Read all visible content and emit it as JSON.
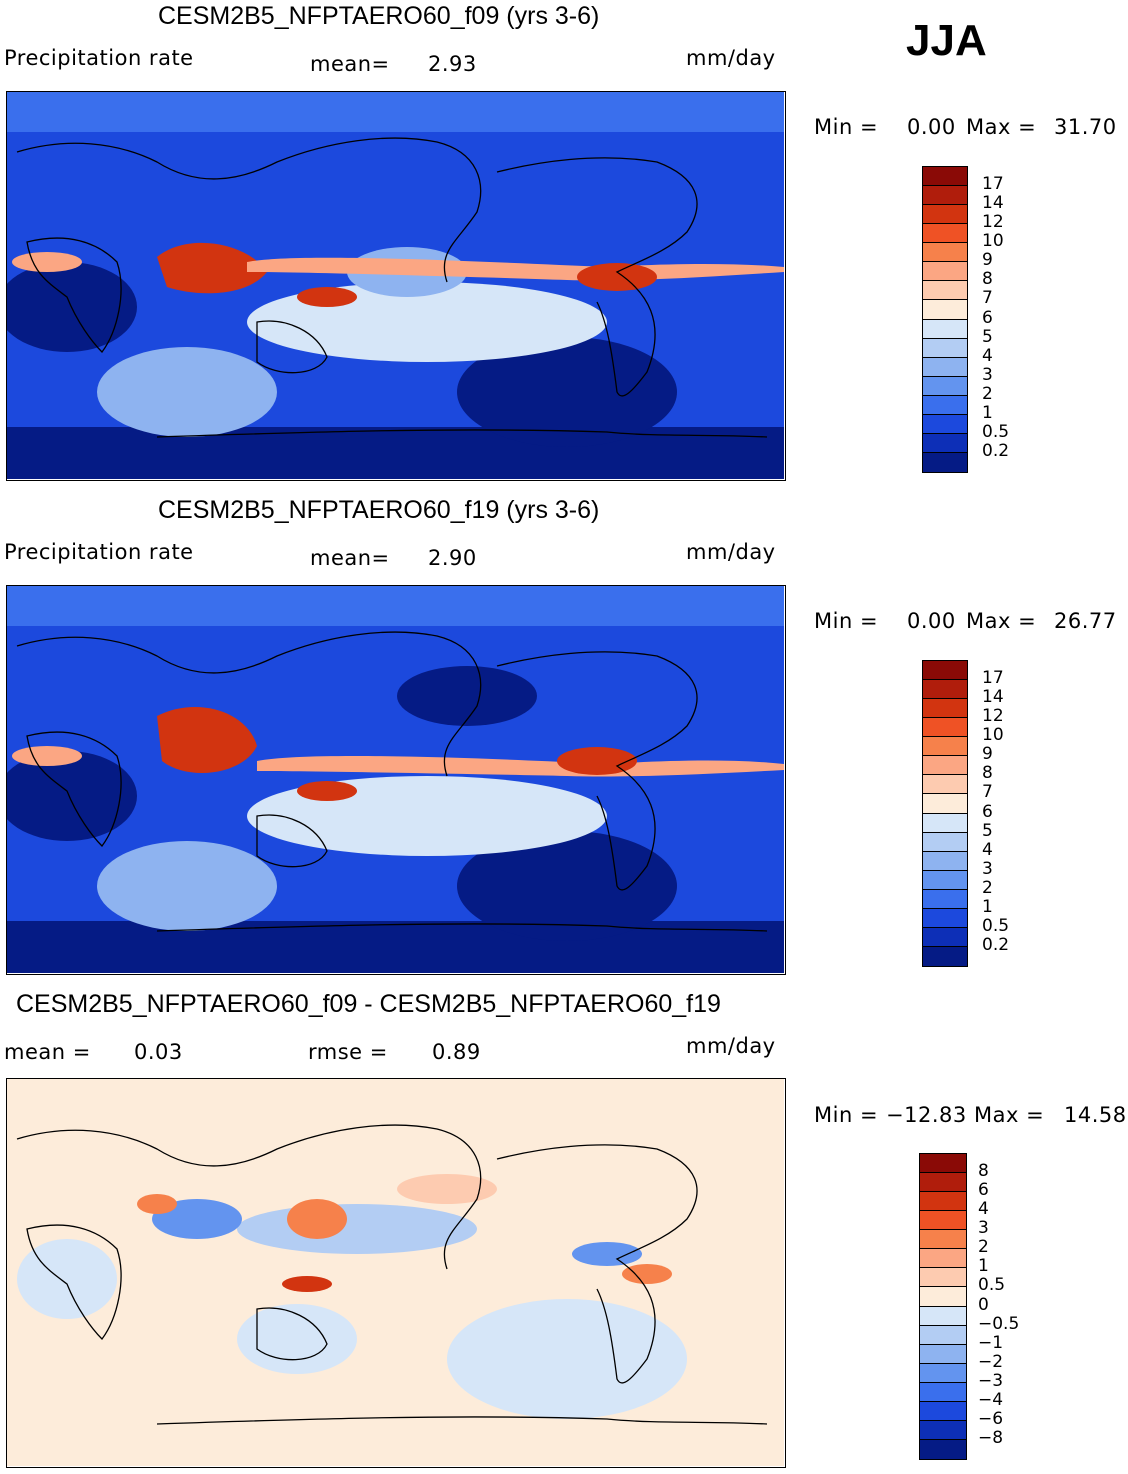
{
  "season": "JJA",
  "panels": [
    {
      "title": "CESM2B5_NFPTAERO60_f09 (yrs 3-6)",
      "variable": "Precipitation  rate",
      "stat1_label": "mean=",
      "stat1_value": "2.93",
      "stat2_label": "",
      "stat2_value": "",
      "units": "mm/day",
      "min_label": "Min  =",
      "min_value": "0.00",
      "max_label": "Max  =",
      "max_value": "31.70",
      "colorbar_levels": [
        "17",
        "14",
        "12",
        "10",
        "9",
        "8",
        "7",
        "6",
        "5",
        "4",
        "3",
        "2",
        "1",
        "0.5",
        "0.2"
      ],
      "colorbar_colors": [
        "#8a0a06",
        "#b01d0c",
        "#d23410",
        "#ef5225",
        "#f6814b",
        "#fba683",
        "#fdcbb0",
        "#fdecda",
        "#d6e6f8",
        "#b3cdf3",
        "#8eb3f0",
        "#6394ef",
        "#3a6fed",
        "#1c49dd",
        "#0d2fb7",
        "#051b85"
      ],
      "map_palette": {
        "ocean": "#1c49dd",
        "deep": "#051b85",
        "mid": "#3a6fed",
        "light": "#8eb3f0",
        "pale": "#d6e6f8",
        "warm": "#fba683",
        "hot": "#d23410",
        "coast": "#000000"
      }
    },
    {
      "title": "CESM2B5_NFPTAERO60_f19 (yrs 3-6)",
      "variable": "Precipitation  rate",
      "stat1_label": "mean=",
      "stat1_value": "2.90",
      "stat2_label": "",
      "stat2_value": "",
      "units": "mm/day",
      "min_label": "Min  =",
      "min_value": "0.00",
      "max_label": "Max  =",
      "max_value": "26.77",
      "colorbar_levels": [
        "17",
        "14",
        "12",
        "10",
        "9",
        "8",
        "7",
        "6",
        "5",
        "4",
        "3",
        "2",
        "1",
        "0.5",
        "0.2"
      ],
      "colorbar_colors": [
        "#8a0a06",
        "#b01d0c",
        "#d23410",
        "#ef5225",
        "#f6814b",
        "#fba683",
        "#fdcbb0",
        "#fdecda",
        "#d6e6f8",
        "#b3cdf3",
        "#8eb3f0",
        "#6394ef",
        "#3a6fed",
        "#1c49dd",
        "#0d2fb7",
        "#051b85"
      ],
      "map_palette": {
        "ocean": "#1c49dd",
        "deep": "#051b85",
        "mid": "#3a6fed",
        "light": "#8eb3f0",
        "pale": "#d6e6f8",
        "warm": "#fba683",
        "hot": "#d23410",
        "coast": "#000000"
      }
    },
    {
      "title": "CESM2B5_NFPTAERO60_f09 - CESM2B5_NFPTAERO60_f19",
      "variable": "",
      "stat1_label": "mean  =",
      "stat1_value": "0.03",
      "stat2_label": "rmse  =",
      "stat2_value": "0.89",
      "units": "mm/day",
      "min_label": "Min  =",
      "min_value": "−12.83",
      "max_label": "Max  =",
      "max_value": "14.58",
      "colorbar_levels": [
        "8",
        "6",
        "4",
        "3",
        "2",
        "1",
        "0.5",
        "0",
        "−0.5",
        "−1",
        "−2",
        "−3",
        "−4",
        "−6",
        "−8"
      ],
      "colorbar_colors": [
        "#8a0a06",
        "#b01d0c",
        "#d23410",
        "#ef5225",
        "#f6814b",
        "#fba683",
        "#fdcbb0",
        "#fdecda",
        "#d6e6f8",
        "#b3cdf3",
        "#8eb3f0",
        "#6394ef",
        "#3a6fed",
        "#1c49dd",
        "#0d2fb7",
        "#051b85"
      ],
      "map_palette": {
        "ocean": "#fdecda",
        "deep": "#d6e6f8",
        "mid": "#b3cdf3",
        "light": "#6394ef",
        "pale": "#fdcbb0",
        "warm": "#f6814b",
        "hot": "#d23410",
        "coast": "#000000"
      }
    }
  ]
}
